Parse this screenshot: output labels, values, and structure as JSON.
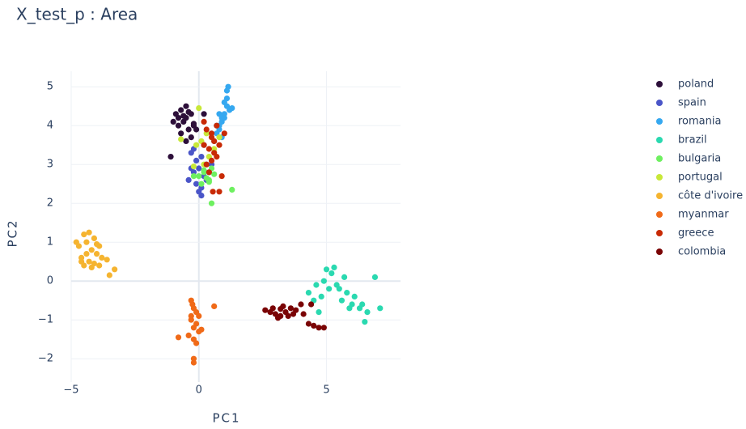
{
  "chart_data": {
    "type": "scatter",
    "title": "X_test_p : Area",
    "x_label": "PC1",
    "y_label": "PC2",
    "xlim": [
      -5.0,
      7.9
    ],
    "ylim": [
      -2.6,
      5.4
    ],
    "xticks": [
      {
        "value": -5,
        "label": "−5"
      },
      0,
      5
    ],
    "yticks": [
      {
        "value": -2,
        "label": "−2"
      },
      {
        "value": -1,
        "label": "−1"
      },
      0,
      1,
      2,
      3,
      4,
      5
    ],
    "grid": true,
    "series": [
      {
        "name": "poland",
        "color": "#2d0f3a",
        "x": [
          -0.9,
          -0.7,
          -0.5,
          -0.3,
          -0.8,
          -0.6,
          -0.4,
          -0.2,
          -1.0,
          -0.7,
          -0.5,
          -0.3,
          -0.1,
          -0.6,
          -0.4,
          -1.1,
          0.2,
          -0.8,
          -0.5,
          -0.2
        ],
        "y": [
          4.3,
          4.4,
          4.2,
          4.3,
          4.0,
          4.1,
          3.9,
          4.0,
          4.1,
          3.8,
          4.5,
          3.7,
          3.9,
          4.25,
          4.35,
          3.2,
          4.3,
          4.2,
          3.6,
          4.05
        ]
      },
      {
        "name": "spain",
        "color": "#4a55c8",
        "x": [
          -0.3,
          -0.1,
          0.1,
          0.3,
          -0.2,
          0.0,
          0.2,
          0.4,
          -0.4,
          -0.1,
          0.1,
          0.3,
          0.0,
          -0.2,
          0.2,
          0.5,
          -0.3,
          0.1
        ],
        "y": [
          3.3,
          3.1,
          3.2,
          3.0,
          2.8,
          2.9,
          2.7,
          2.8,
          2.6,
          2.5,
          2.4,
          2.6,
          2.3,
          3.4,
          3.5,
          3.0,
          2.9,
          2.2
        ]
      },
      {
        "name": "romania",
        "color": "#35a8f0",
        "x": [
          0.6,
          0.7,
          0.8,
          0.9,
          0.7,
          0.8,
          1.0,
          1.1,
          0.9,
          1.0,
          1.1,
          1.2,
          1.1,
          1.0,
          0.8,
          0.9,
          1.3,
          1.15
        ],
        "y": [
          3.6,
          3.8,
          4.0,
          4.2,
          4.0,
          3.9,
          4.3,
          4.5,
          4.1,
          4.6,
          4.7,
          4.4,
          4.9,
          4.2,
          4.3,
          3.7,
          4.45,
          5.0
        ]
      },
      {
        "name": "brazil",
        "color": "#2ad9b0",
        "x": [
          4.3,
          4.6,
          4.9,
          5.2,
          5.5,
          5.8,
          6.1,
          6.4,
          4.5,
          4.8,
          5.1,
          5.4,
          5.7,
          6.0,
          6.3,
          6.6,
          7.1,
          6.9,
          5.0,
          5.3,
          5.6,
          4.7,
          5.9,
          6.5
        ],
        "y": [
          -0.3,
          -0.1,
          0.0,
          0.2,
          -0.2,
          -0.3,
          -0.4,
          -0.6,
          -0.5,
          -0.4,
          -0.2,
          -0.1,
          0.1,
          -0.6,
          -0.7,
          -0.8,
          -0.7,
          0.1,
          0.3,
          0.35,
          -0.5,
          -0.8,
          -0.7,
          -1.05
        ]
      },
      {
        "name": "bulgaria",
        "color": "#6ef060",
        "x": [
          0.0,
          0.2,
          0.4,
          0.6,
          0.1,
          0.3,
          0.5,
          -0.2,
          1.3,
          0.5,
          0.2,
          0.4
        ],
        "y": [
          2.7,
          2.8,
          2.6,
          2.75,
          2.5,
          2.65,
          2.9,
          2.7,
          2.35,
          2.0,
          2.85,
          2.55
        ]
      },
      {
        "name": "portugal",
        "color": "#c8e838",
        "x": [
          -0.1,
          0.0,
          -0.7,
          0.3,
          0.6,
          0.2,
          -0.2,
          0.8,
          0.4,
          0.1
        ],
        "y": [
          3.5,
          4.45,
          3.65,
          3.8,
          3.4,
          3.0,
          2.95,
          3.7,
          3.2,
          3.6
        ]
      },
      {
        "name": "côte d'ivoire",
        "color": "#f5b430",
        "x": [
          -4.7,
          -4.5,
          -4.3,
          -4.1,
          -3.9,
          -4.6,
          -4.4,
          -4.2,
          -4.0,
          -3.8,
          -4.5,
          -4.3,
          -4.1,
          -4.6,
          -4.4,
          -4.2,
          -3.9,
          -3.5,
          -3.3,
          -3.6,
          -4.8,
          -4.0
        ],
        "y": [
          0.9,
          1.2,
          1.25,
          1.1,
          0.9,
          0.6,
          0.7,
          0.8,
          0.7,
          0.6,
          0.4,
          0.5,
          0.45,
          0.5,
          1.0,
          0.35,
          0.4,
          0.15,
          0.3,
          0.55,
          1.0,
          0.95
        ]
      },
      {
        "name": "myanmar",
        "color": "#f06a18",
        "x": [
          -0.3,
          -0.2,
          -0.1,
          0.0,
          -0.3,
          -0.1,
          -0.2,
          0.0,
          -0.4,
          -0.2,
          -0.3,
          -0.1,
          -0.2,
          -0.2,
          -0.25,
          0.6,
          -0.8,
          0.1
        ],
        "y": [
          -0.5,
          -0.7,
          -0.8,
          -0.9,
          -1.0,
          -1.1,
          -1.2,
          -1.3,
          -1.4,
          -1.5,
          -0.9,
          -1.6,
          -2.0,
          -2.1,
          -0.6,
          -0.65,
          -1.45,
          -1.25
        ]
      },
      {
        "name": "greece",
        "color": "#c82a05",
        "x": [
          0.3,
          0.5,
          0.7,
          0.2,
          0.4,
          0.6,
          0.8,
          0.3,
          0.5,
          0.7,
          0.9,
          0.4,
          0.6,
          0.2,
          0.8,
          0.55,
          1.0,
          0.5
        ],
        "y": [
          3.9,
          3.8,
          4.0,
          3.5,
          3.4,
          3.3,
          3.5,
          3.0,
          3.1,
          3.2,
          2.7,
          2.8,
          3.6,
          4.1,
          2.3,
          2.3,
          3.8,
          3.7
        ]
      },
      {
        "name": "colombia",
        "color": "#7a0405",
        "x": [
          2.6,
          2.8,
          3.0,
          3.2,
          3.4,
          3.6,
          3.8,
          4.0,
          2.9,
          3.1,
          3.3,
          3.5,
          3.7,
          4.3,
          4.5,
          4.7,
          4.9,
          4.4,
          4.1,
          3.2
        ],
        "y": [
          -0.75,
          -0.8,
          -0.85,
          -0.9,
          -0.8,
          -0.7,
          -0.75,
          -0.6,
          -0.7,
          -0.95,
          -0.65,
          -0.9,
          -0.85,
          -1.1,
          -1.15,
          -1.2,
          -1.2,
          -0.6,
          -0.85,
          -0.72
        ]
      }
    ]
  }
}
